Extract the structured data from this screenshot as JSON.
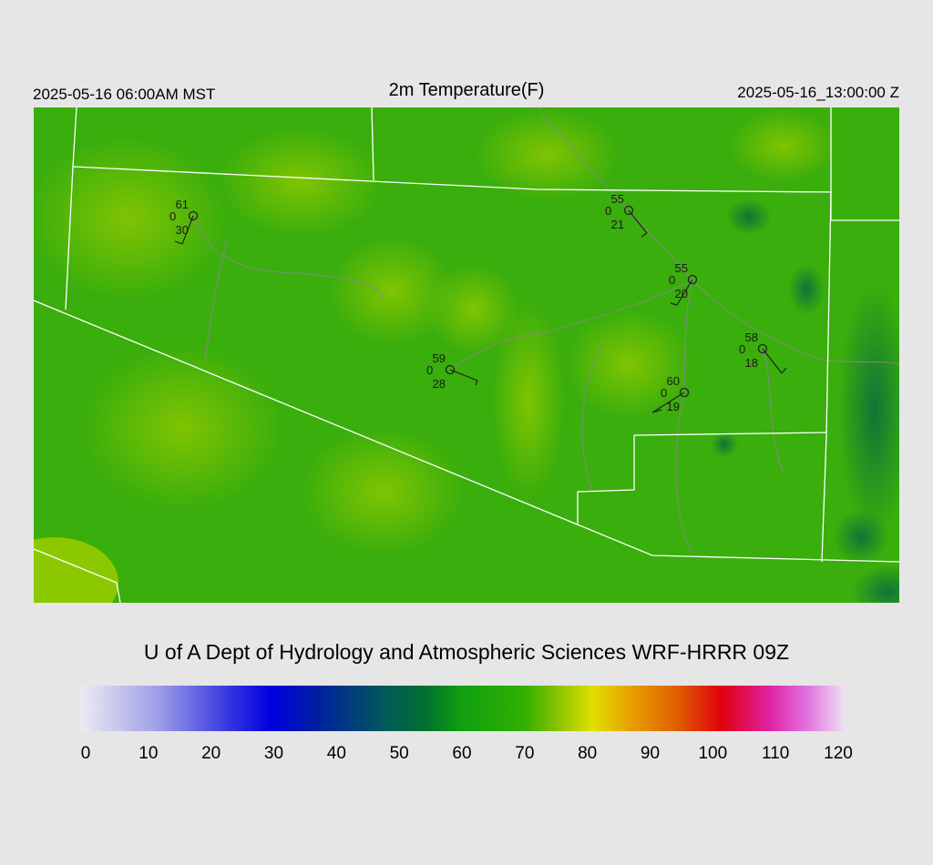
{
  "header": {
    "left": "2025-05-16 06:00AM MST",
    "title": "2m Temperature(F)",
    "right": "2025-05-16_13:00:00 Z"
  },
  "stations": [
    {
      "temperature": "61",
      "left": "0",
      "bottom": "30"
    },
    {
      "temperature": "55",
      "left": "0",
      "bottom": "21"
    },
    {
      "temperature": "55",
      "left": "0",
      "bottom": "20"
    },
    {
      "temperature": "59",
      "left": "0",
      "bottom": "28"
    },
    {
      "temperature": "58",
      "left": "0",
      "bottom": "18"
    },
    {
      "temperature": "60",
      "left": "0",
      "bottom": "19"
    }
  ],
  "credit": "U of A Dept of Hydrology and Atmospheric Sciences WRF-HRRR 09Z",
  "colorbar": {
    "ticks": [
      "0",
      "10",
      "20",
      "30",
      "40",
      "50",
      "60",
      "70",
      "80",
      "90",
      "100",
      "110",
      "120"
    ]
  }
}
